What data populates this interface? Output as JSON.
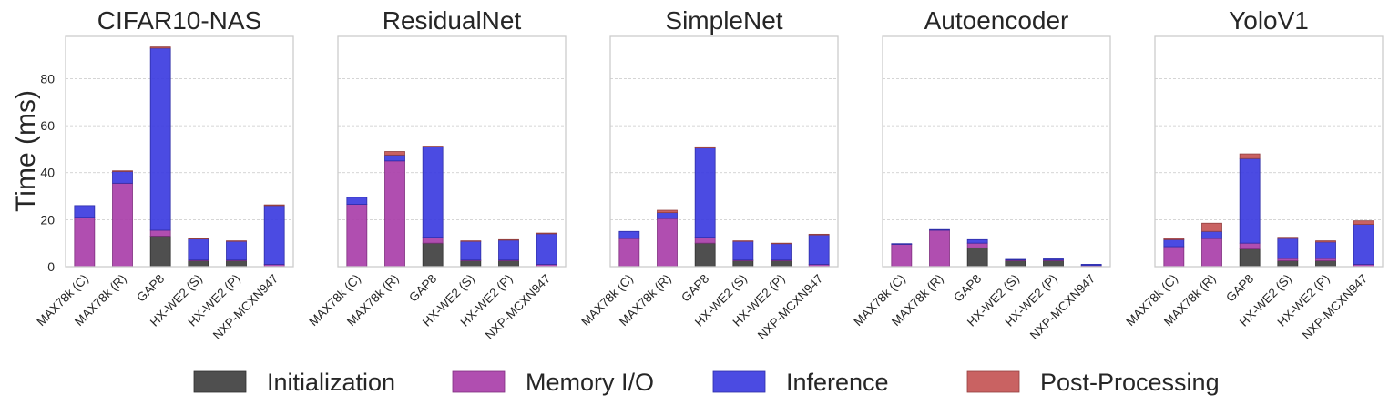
{
  "ylabel": "Time (ms)",
  "legend": {
    "placement": "bottom-center",
    "items": [
      {
        "label": "Initialization",
        "color": "#404040"
      },
      {
        "label": "Memory I/O",
        "color": "#a93fa9"
      },
      {
        "label": "Inference",
        "color": "#3c3ce0"
      },
      {
        "label": "Post-Processing",
        "color": "#c45555"
      }
    ]
  },
  "chart_data": [
    {
      "type": "bar",
      "stacked": true,
      "title": "CIFAR10-NAS",
      "categories": [
        "MAX78k (C)",
        "MAX78k (R)",
        "GAP8",
        "HX-WE2 (S)",
        "HX-WE2 (P)",
        "NXP-MCXN947"
      ],
      "ylim": [
        0,
        98
      ],
      "yticks": [
        0,
        20,
        40,
        60,
        80
      ],
      "grid": "y",
      "series": [
        {
          "name": "Initialization",
          "values": [
            0,
            0,
            13,
            2.5,
            2.5,
            0
          ]
        },
        {
          "name": "Memory I/O",
          "values": [
            21,
            35.5,
            2.5,
            0.3,
            0.3,
            1
          ]
        },
        {
          "name": "Inference",
          "values": [
            5,
            5,
            77.5,
            9,
            8,
            25
          ]
        },
        {
          "name": "Post-Processing",
          "values": [
            0,
            0.3,
            0.5,
            0.2,
            0.2,
            0.3
          ]
        }
      ]
    },
    {
      "type": "bar",
      "stacked": true,
      "title": "ResidualNet",
      "categories": [
        "MAX78k (C)",
        "MAX78k (R)",
        "GAP8",
        "HX-WE2 (S)",
        "HX-WE2 (P)",
        "NXP-MCXN947"
      ],
      "ylim": [
        0,
        98
      ],
      "yticks": [
        0,
        20,
        40,
        60,
        80
      ],
      "grid": "y",
      "series": [
        {
          "name": "Initialization",
          "values": [
            0,
            0,
            10,
            2.5,
            2.5,
            0
          ]
        },
        {
          "name": "Memory I/O",
          "values": [
            26.5,
            45,
            2.5,
            0.3,
            0.3,
            1
          ]
        },
        {
          "name": "Inference",
          "values": [
            3,
            2.5,
            38.5,
            8,
            8.5,
            13
          ]
        },
        {
          "name": "Post-Processing",
          "values": [
            0,
            1.5,
            0.3,
            0.2,
            0.2,
            0.3
          ]
        }
      ]
    },
    {
      "type": "bar",
      "stacked": true,
      "title": "SimpleNet",
      "categories": [
        "MAX78k (C)",
        "MAX78k (R)",
        "GAP8",
        "HX-WE2 (S)",
        "HX-WE2 (P)",
        "NXP-MCXN947"
      ],
      "ylim": [
        0,
        98
      ],
      "yticks": [
        0,
        20,
        40,
        60,
        80
      ],
      "grid": "y",
      "series": [
        {
          "name": "Initialization",
          "values": [
            0,
            0,
            10,
            2.5,
            2.5,
            0
          ]
        },
        {
          "name": "Memory I/O",
          "values": [
            12,
            20.5,
            2.5,
            0.3,
            0.3,
            1
          ]
        },
        {
          "name": "Inference",
          "values": [
            3,
            2.5,
            38,
            8,
            7,
            12.5
          ]
        },
        {
          "name": "Post-Processing",
          "values": [
            0,
            1,
            0.5,
            0.2,
            0.2,
            0.3
          ]
        }
      ]
    },
    {
      "type": "bar",
      "stacked": true,
      "title": "Autoencoder",
      "categories": [
        "MAX78k (C)",
        "MAX78k (R)",
        "GAP8",
        "HX-WE2 (S)",
        "HX-WE2 (P)",
        "NXP-MCXN947"
      ],
      "ylim": [
        0,
        98
      ],
      "yticks": [
        0,
        20,
        40,
        60,
        80
      ],
      "grid": "y",
      "series": [
        {
          "name": "Initialization",
          "values": [
            0,
            0,
            8,
            2.5,
            2.5,
            0
          ]
        },
        {
          "name": "Memory I/O",
          "values": [
            9.5,
            15.5,
            2,
            0.3,
            0.3,
            0.5
          ]
        },
        {
          "name": "Inference",
          "values": [
            0.3,
            0.3,
            1.5,
            0.3,
            0.5,
            0.5
          ]
        },
        {
          "name": "Post-Processing",
          "values": [
            0,
            0,
            0,
            0,
            0,
            0
          ]
        }
      ]
    },
    {
      "type": "bar",
      "stacked": true,
      "title": "YoloV1",
      "categories": [
        "MAX78k (C)",
        "MAX78k (R)",
        "GAP8",
        "HX-WE2 (S)",
        "HX-WE2 (P)",
        "NXP-MCXN947"
      ],
      "ylim": [
        0,
        98
      ],
      "yticks": [
        0,
        20,
        40,
        60,
        80
      ],
      "grid": "y",
      "series": [
        {
          "name": "Initialization",
          "values": [
            0,
            0,
            7.5,
            2.5,
            2.5,
            0
          ]
        },
        {
          "name": "Memory I/O",
          "values": [
            8.5,
            12,
            2.5,
            1,
            1,
            1
          ]
        },
        {
          "name": "Inference",
          "values": [
            3,
            3,
            36,
            8.5,
            7,
            17
          ]
        },
        {
          "name": "Post-Processing",
          "values": [
            0.5,
            3.5,
            2,
            0.5,
            0.5,
            1.5
          ]
        }
      ]
    }
  ]
}
